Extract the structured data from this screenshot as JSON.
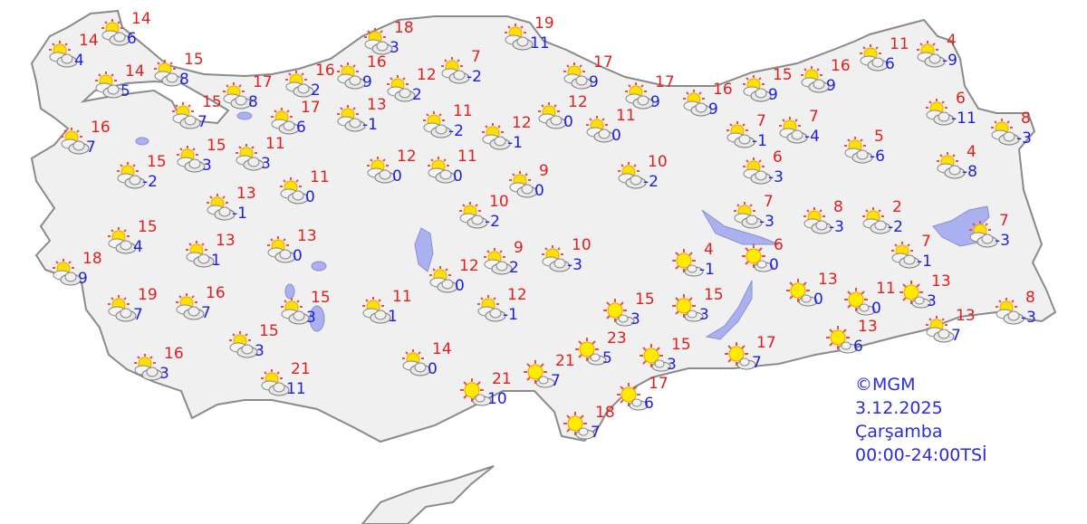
{
  "legend": {
    "source": "©MGM",
    "date": "3.12.2025",
    "day": "Çarşamba",
    "period": "00:00-24:00TSİ"
  },
  "colors": {
    "max_temp": "#e01e1e",
    "min_temp": "#1e1ee0",
    "land": "#f0f0f0",
    "water": "#aab0f0"
  },
  "stations": [
    {
      "max": "14",
      "min": "4",
      "icon": "partly-cloudy"
    },
    {
      "max": "14",
      "min": "6",
      "icon": "partly-cloudy"
    },
    {
      "max": "14",
      "min": "5",
      "icon": "partly-cloudy"
    },
    {
      "max": "15",
      "min": "8",
      "icon": "partly-cloudy"
    },
    {
      "max": "15",
      "min": "7",
      "icon": "partly-cloudy"
    },
    {
      "max": "17",
      "min": "8",
      "icon": "partly-cloudy"
    },
    {
      "max": "16",
      "min": "2",
      "icon": "partly-cloudy"
    },
    {
      "max": "16",
      "min": "9",
      "icon": "partly-cloudy"
    },
    {
      "max": "17",
      "min": "6",
      "icon": "partly-cloudy"
    },
    {
      "max": "13",
      "min": "-1",
      "icon": "partly-cloudy"
    },
    {
      "max": "18",
      "min": "3",
      "icon": "partly-cloudy"
    },
    {
      "max": "12",
      "min": "2",
      "icon": "partly-cloudy"
    },
    {
      "max": "7",
      "min": "-2",
      "icon": "partly-cloudy"
    },
    {
      "max": "11",
      "min": "-2",
      "icon": "partly-cloudy"
    },
    {
      "max": "19",
      "min": "11",
      "icon": "partly-cloudy"
    },
    {
      "max": "12",
      "min": "-1",
      "icon": "partly-cloudy"
    },
    {
      "max": "12",
      "min": "0",
      "icon": "partly-cloudy"
    },
    {
      "max": "11",
      "min": "0",
      "icon": "partly-cloudy"
    },
    {
      "max": "17",
      "min": "9",
      "icon": "partly-cloudy"
    },
    {
      "max": "17",
      "min": "9",
      "icon": "partly-cloudy"
    },
    {
      "max": "16",
      "min": "9",
      "icon": "partly-cloudy"
    },
    {
      "max": "15",
      "min": "9",
      "icon": "partly-cloudy"
    },
    {
      "max": "16",
      "min": "9",
      "icon": "partly-cloudy"
    },
    {
      "max": "11",
      "min": "6",
      "icon": "partly-cloudy"
    },
    {
      "max": "4",
      "min": "-9",
      "icon": "partly-cloudy"
    },
    {
      "max": "6",
      "min": "-11",
      "icon": "partly-cloudy"
    },
    {
      "max": "8",
      "min": "-3",
      "icon": "partly-cloudy"
    },
    {
      "max": "16",
      "min": "7",
      "icon": "partly-cloudy"
    },
    {
      "max": "15",
      "min": "-2",
      "icon": "partly-cloudy"
    },
    {
      "max": "15",
      "min": "3",
      "icon": "partly-cloudy"
    },
    {
      "max": "11",
      "min": "3",
      "icon": "partly-cloudy"
    },
    {
      "max": "13",
      "min": "-1",
      "icon": "partly-cloudy"
    },
    {
      "max": "11",
      "min": "0",
      "icon": "partly-cloudy"
    },
    {
      "max": "12",
      "min": "0",
      "icon": "partly-cloudy"
    },
    {
      "max": "11",
      "min": "0",
      "icon": "partly-cloudy"
    },
    {
      "max": "9",
      "min": "0",
      "icon": "partly-cloudy"
    },
    {
      "max": "10",
      "min": "-2",
      "icon": "partly-cloudy"
    },
    {
      "max": "10",
      "min": "-2",
      "icon": "partly-cloudy"
    },
    {
      "max": "7",
      "min": "-1",
      "icon": "partly-cloudy"
    },
    {
      "max": "7",
      "min": "-4",
      "icon": "partly-cloudy"
    },
    {
      "max": "5",
      "min": "-6",
      "icon": "partly-cloudy"
    },
    {
      "max": "6",
      "min": "-3",
      "icon": "partly-cloudy"
    },
    {
      "max": "4",
      "min": "-8",
      "icon": "partly-cloudy"
    },
    {
      "max": "7",
      "min": "-3",
      "icon": "partly-cloudy"
    },
    {
      "max": "8",
      "min": "-3",
      "icon": "partly-cloudy"
    },
    {
      "max": "2",
      "min": "-2",
      "icon": "partly-cloudy"
    },
    {
      "max": "7",
      "min": "-1",
      "icon": "partly-cloudy"
    },
    {
      "max": "7",
      "min": "-3",
      "icon": "partly-cloudy"
    },
    {
      "max": "15",
      "min": "4",
      "icon": "partly-cloudy"
    },
    {
      "max": "18",
      "min": "9",
      "icon": "partly-cloudy"
    },
    {
      "max": "13",
      "min": "1",
      "icon": "partly-cloudy"
    },
    {
      "max": "13",
      "min": "0",
      "icon": "partly-cloudy"
    },
    {
      "max": "19",
      "min": "7",
      "icon": "partly-cloudy"
    },
    {
      "max": "16",
      "min": "7",
      "icon": "partly-cloudy"
    },
    {
      "max": "15",
      "min": "3",
      "icon": "partly-cloudy"
    },
    {
      "max": "15",
      "min": "3",
      "icon": "partly-cloudy"
    },
    {
      "max": "16",
      "min": "3",
      "icon": "partly-cloudy"
    },
    {
      "max": "11",
      "min": "1",
      "icon": "partly-cloudy"
    },
    {
      "max": "21",
      "min": "11",
      "icon": "partly-cloudy"
    },
    {
      "max": "14",
      "min": "0",
      "icon": "partly-cloudy"
    },
    {
      "max": "9",
      "min": "2",
      "icon": "partly-cloudy"
    },
    {
      "max": "10",
      "min": "-3",
      "icon": "partly-cloudy"
    },
    {
      "max": "12",
      "min": "0",
      "icon": "partly-cloudy"
    },
    {
      "max": "12",
      "min": "-1",
      "icon": "partly-cloudy"
    },
    {
      "max": "21",
      "min": "10",
      "icon": "sunny"
    },
    {
      "max": "21",
      "min": "7",
      "icon": "sunny"
    },
    {
      "max": "23",
      "min": "5",
      "icon": "sunny"
    },
    {
      "max": "15",
      "min": "3",
      "icon": "sunny"
    },
    {
      "max": "15",
      "min": "3",
      "icon": "sunny"
    },
    {
      "max": "15",
      "min": "3",
      "icon": "sunny"
    },
    {
      "max": "17",
      "min": "7",
      "icon": "sunny"
    },
    {
      "max": "17",
      "min": "6",
      "icon": "sunny"
    },
    {
      "max": "18",
      "min": "7",
      "icon": "sunny"
    },
    {
      "max": "4",
      "min": "-1",
      "icon": "sunny"
    },
    {
      "max": "6",
      "min": "0",
      "icon": "sunny"
    },
    {
      "max": "13",
      "min": "0",
      "icon": "sunny"
    },
    {
      "max": "11",
      "min": "0",
      "icon": "sunny"
    },
    {
      "max": "13",
      "min": "3",
      "icon": "sunny"
    },
    {
      "max": "13",
      "min": "6",
      "icon": "sunny"
    },
    {
      "max": "13",
      "min": "7",
      "icon": "partly-cloudy"
    },
    {
      "max": "8",
      "min": "-3",
      "icon": "partly-cloudy"
    }
  ]
}
